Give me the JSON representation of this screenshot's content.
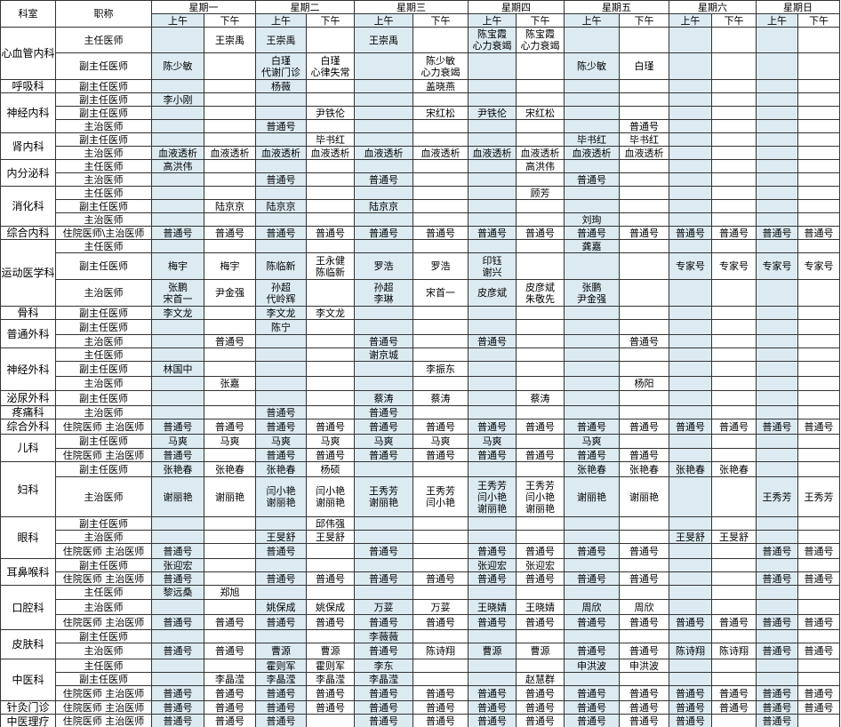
{
  "header": {
    "dept": "科室",
    "title": "职称",
    "days": [
      "星期一",
      "星期二",
      "星期三",
      "星期四",
      "星期五",
      "星期六",
      "星期日"
    ],
    "halves": [
      "上午",
      "下午"
    ]
  },
  "rows": [
    {
      "dept": "心血管内科",
      "title": "主任医师",
      "cells": [
        null,
        "王崇禹",
        "王崇禹",
        null,
        "王崇禹",
        null,
        "陈宝霞\n心力衰竭",
        "陈宝霞\n心力衰竭",
        null,
        null,
        null,
        null,
        null,
        null
      ]
    },
    {
      "title": "副主任医师",
      "cells": [
        "陈少敏",
        null,
        "白瑾\n代谢门诊",
        "白瑾\n心律失常",
        null,
        "陈少敏\n心力衰竭",
        null,
        null,
        "陈少敏",
        "白瑾",
        null,
        null,
        null,
        null
      ]
    },
    {
      "dept": "呼吸科",
      "title": "副主任医师",
      "cells": [
        null,
        null,
        "杨薇",
        null,
        null,
        "盖晓燕",
        null,
        null,
        null,
        null,
        null,
        null,
        null,
        null
      ]
    },
    {
      "dept": "神经内科",
      "title": "副主任医师",
      "cells": [
        "李小刚",
        null,
        null,
        null,
        null,
        null,
        null,
        null,
        null,
        null,
        null,
        null,
        null,
        null
      ]
    },
    {
      "title": "副主任医师",
      "cells": [
        null,
        null,
        null,
        "尹铁伦",
        null,
        "宋红松",
        "尹铁伦",
        "宋红松",
        null,
        null,
        null,
        null,
        null,
        null
      ]
    },
    {
      "title": "主治医师",
      "cells": [
        null,
        null,
        "普通号",
        null,
        null,
        null,
        null,
        null,
        null,
        "普通号",
        null,
        null,
        null,
        null
      ]
    },
    {
      "dept": "肾内科",
      "title": "副主任医师",
      "cells": [
        null,
        null,
        null,
        "毕书红",
        null,
        null,
        null,
        null,
        "毕书红",
        "毕书红",
        null,
        null,
        null,
        null
      ]
    },
    {
      "title": "主治医师",
      "cells": [
        "血液透析",
        "血液透析",
        "血液透析",
        "血液透析",
        "血液透析",
        "血液透析",
        "血液透析",
        "血液透析",
        "血液透析",
        "血液透析",
        null,
        null,
        null,
        null
      ]
    },
    {
      "dept": "内分泌科",
      "title": "主任医师",
      "cells": [
        "高洪伟",
        null,
        null,
        null,
        null,
        null,
        null,
        "高洪伟",
        null,
        null,
        null,
        null,
        null,
        null
      ]
    },
    {
      "title": "主治医师",
      "cells": [
        null,
        null,
        "普通号",
        null,
        "普通号",
        null,
        null,
        null,
        "普通号",
        null,
        null,
        null,
        null,
        null
      ]
    },
    {
      "dept": "消化科",
      "title": "主任医师",
      "cells": [
        null,
        null,
        null,
        null,
        null,
        null,
        null,
        "顾芳",
        null,
        null,
        null,
        null,
        null,
        null
      ]
    },
    {
      "title": "副主任医师",
      "cells": [
        null,
        "陆京京",
        "陆京京",
        null,
        "陆京京",
        null,
        null,
        null,
        null,
        null,
        null,
        null,
        null,
        null
      ]
    },
    {
      "title": "主治医师",
      "cells": [
        null,
        null,
        null,
        null,
        null,
        null,
        null,
        null,
        "刘珣",
        null,
        null,
        null,
        null,
        null
      ]
    },
    {
      "dept": "综合内科",
      "title": "住院医师\\主治医师",
      "cells": [
        "普通号",
        "普通号",
        "普通号",
        "普通号",
        "普通号",
        "普通号",
        "普通号",
        "普通号",
        "普通号",
        "普通号",
        "普通号",
        "普通号",
        "普通号",
        "普通号"
      ]
    },
    {
      "dept": "运动医学科",
      "title": "主任医师",
      "cells": [
        null,
        null,
        null,
        null,
        null,
        null,
        null,
        null,
        "龚嘉",
        null,
        null,
        null,
        null,
        null
      ]
    },
    {
      "title": "副主任医师",
      "cells": [
        "梅宇",
        "梅宇",
        "陈临新",
        "王永健\n陈临新",
        "罗浩",
        "罗浩",
        "印钰\n谢兴",
        null,
        null,
        null,
        "专家号",
        "专家号",
        "专家号",
        "专家号"
      ]
    },
    {
      "title": "主治医师",
      "cells": [
        "张鹏\n宋首一",
        "尹金强",
        "孙超\n代岭辉",
        null,
        "孙超\n李琳",
        "宋首一",
        "皮彦斌",
        "皮彦斌\n朱敬先",
        "张鹏\n尹金强",
        null,
        null,
        null,
        null,
        null
      ]
    },
    {
      "dept": "骨科",
      "title": "副主任医师",
      "cells": [
        "李文龙",
        null,
        "李文龙",
        "李文龙",
        null,
        null,
        null,
        null,
        null,
        null,
        null,
        null,
        null,
        null
      ]
    },
    {
      "dept": "普通外科",
      "title": "副主任医师",
      "cells": [
        null,
        null,
        "陈宁",
        null,
        null,
        null,
        null,
        null,
        null,
        null,
        null,
        null,
        null,
        null
      ]
    },
    {
      "title": "主治医师",
      "cells": [
        null,
        "普通号",
        null,
        null,
        "普通号",
        null,
        "普通号",
        null,
        null,
        "普通号",
        null,
        null,
        null,
        null
      ]
    },
    {
      "dept": "神经外科",
      "title": "主任医师",
      "cells": [
        null,
        null,
        null,
        null,
        "谢京城",
        null,
        null,
        null,
        null,
        null,
        null,
        null,
        null,
        null
      ]
    },
    {
      "title": "副主任医师",
      "cells": [
        "林国中",
        null,
        null,
        null,
        null,
        "李振东",
        null,
        null,
        null,
        null,
        null,
        null,
        null,
        null
      ]
    },
    {
      "title": "主治医师",
      "cells": [
        null,
        "张嘉",
        null,
        null,
        null,
        null,
        null,
        null,
        null,
        "杨阳",
        null,
        null,
        null,
        null
      ]
    },
    {
      "dept": "泌尿外科",
      "title": "副主任医师",
      "cells": [
        null,
        null,
        null,
        null,
        "蔡涛",
        "蔡涛",
        null,
        "蔡涛",
        null,
        null,
        null,
        null,
        null,
        null
      ]
    },
    {
      "dept": "疼痛科",
      "title": "主治医师",
      "cells": [
        null,
        null,
        "普通号",
        null,
        "普通号",
        null,
        null,
        null,
        null,
        null,
        null,
        null,
        null,
        null
      ]
    },
    {
      "dept": "综合外科",
      "title": "住院医师 主治医师",
      "cells": [
        "普通号",
        "普通号",
        "普通号",
        "普通号",
        "普通号",
        "普通号",
        "普通号",
        "普通号",
        "普通号",
        "普通号",
        "普通号",
        "普通号",
        "普通号",
        "普通号"
      ]
    },
    {
      "dept": "儿科",
      "title": "副主任医师",
      "cells": [
        "马爽",
        "马爽",
        "马爽",
        "马爽",
        "马爽",
        "马爽",
        "马爽",
        null,
        "马爽",
        null,
        null,
        null,
        null,
        null
      ]
    },
    {
      "title": "住院医师 主治医师",
      "cells": [
        "普通号",
        null,
        "普通号",
        "普通号",
        "普通号",
        "普通号",
        "普通号",
        "普通号",
        "普通号",
        "普通号",
        null,
        null,
        null,
        null
      ]
    },
    {
      "dept": "妇科",
      "title": "副主任医师",
      "cells": [
        "张艳春",
        "张艳春",
        "张艳春",
        "杨硕",
        null,
        null,
        null,
        null,
        "张艳春",
        "张艳春",
        "张艳春",
        "张艳春",
        null,
        null
      ]
    },
    {
      "title": "主治医师",
      "cells": [
        "谢丽艳",
        "谢丽艳",
        "闫小艳\n谢丽艳",
        "闫小艳\n谢丽艳",
        "王秀芳\n谢丽艳",
        "王秀芳\n闫小艳",
        "王秀芳\n闫小艳\n谢丽艳",
        "王秀芳\n闫小艳\n谢丽艳",
        "谢丽艳",
        "谢丽艳",
        null,
        null,
        "王秀芳",
        "王秀芳"
      ]
    },
    {
      "dept": "眼科",
      "title": "副主任医师",
      "cells": [
        null,
        null,
        null,
        "邱伟强",
        null,
        null,
        null,
        null,
        null,
        null,
        null,
        null,
        null,
        null
      ]
    },
    {
      "title": "主治医师",
      "cells": [
        null,
        null,
        "王旻舒",
        "王旻舒",
        null,
        null,
        null,
        null,
        null,
        null,
        "王旻舒",
        "王旻舒",
        null,
        null
      ]
    },
    {
      "title": "住院医师 主治医师",
      "cells": [
        "普通号",
        null,
        "普通号",
        null,
        "普通号",
        null,
        "普通号",
        "普通号",
        "普通号",
        "普通号",
        null,
        null,
        "普通号",
        "普通号"
      ]
    },
    {
      "dept": "耳鼻喉科",
      "title": "副主任医师",
      "cells": [
        "张迎宏",
        null,
        null,
        null,
        null,
        null,
        "张迎宏",
        "张迎宏",
        null,
        null,
        null,
        null,
        null,
        null
      ]
    },
    {
      "title": "住院医师 主治医师",
      "cells": [
        "普通号",
        null,
        "普通号",
        "普通号",
        "普通号",
        "普通号",
        "普通号",
        "普通号",
        "普通号",
        "普通号",
        null,
        null,
        "普通号",
        "普通号"
      ]
    },
    {
      "dept": "口腔科",
      "title": "主任医师",
      "cells": [
        "黎远桑",
        "郑旭",
        null,
        null,
        null,
        null,
        null,
        null,
        null,
        null,
        null,
        null,
        null,
        null
      ]
    },
    {
      "title": "主治医师",
      "cells": [
        null,
        null,
        "姚保成",
        "姚保成",
        "万荽",
        "万荽",
        "王晓婧",
        "王晓婧",
        "周欣",
        "周欣",
        null,
        null,
        null,
        null
      ]
    },
    {
      "title": "住院医师 主治医师",
      "cells": [
        "普通号",
        "普通号",
        "普通号",
        "普通号",
        "普通号",
        "普通号",
        "普通号",
        "普通号",
        "普通号",
        "普通号",
        "普通号",
        "普通号",
        "普通号",
        "普通号"
      ]
    },
    {
      "dept": "皮肤科",
      "title": "副主任医师",
      "cells": [
        null,
        null,
        null,
        null,
        "李薇薇",
        null,
        null,
        null,
        null,
        null,
        null,
        null,
        null,
        null
      ]
    },
    {
      "title": "主治医师",
      "cells": [
        "普通号",
        "普通号",
        "曹源",
        "曹源",
        "普通号",
        "陈诗翔",
        "曹源",
        "曹源",
        "普通号",
        "普通号",
        "陈诗翔",
        "陈诗翔",
        "普通号",
        "普通号"
      ]
    },
    {
      "dept": "中医科",
      "title": "主任医师",
      "cells": [
        null,
        null,
        "霍则军",
        "霍则军",
        "李东",
        null,
        null,
        null,
        "申洪波",
        "申洪波",
        null,
        null,
        null,
        null
      ]
    },
    {
      "title": "副主任医师",
      "cells": [
        null,
        "李晶滢",
        "李晶滢",
        "李晶滢",
        "李晶滢",
        null,
        null,
        "赵慧群",
        null,
        null,
        null,
        null,
        null,
        null
      ]
    },
    {
      "title": "住院医师 主治医师",
      "cells": [
        "普通号",
        "普通号",
        "普通号",
        "普通号",
        "普通号",
        "普通号",
        "普通号",
        "普通号",
        "普通号",
        "普通号",
        "普通号",
        "普通号",
        "普通号",
        "普通号"
      ]
    },
    {
      "dept": "针灸门诊",
      "title": "住院医师 主治医师",
      "cells": [
        "普通号",
        "普通号",
        "普通号",
        "普通号",
        "普通号",
        "普通号",
        "普通号",
        "普通号",
        "普通号",
        "普通号",
        "普通号",
        "普通号",
        "普通号",
        "普通号"
      ]
    },
    {
      "dept": "中医理疗",
      "title": "住院医师 主治医师",
      "cells": [
        "普通号",
        "普通号",
        "普通号",
        null,
        "普通号",
        "普通号",
        "普通号",
        "普通号",
        "普通号",
        "普通号",
        "普通号",
        null,
        "普通号",
        null
      ]
    }
  ]
}
